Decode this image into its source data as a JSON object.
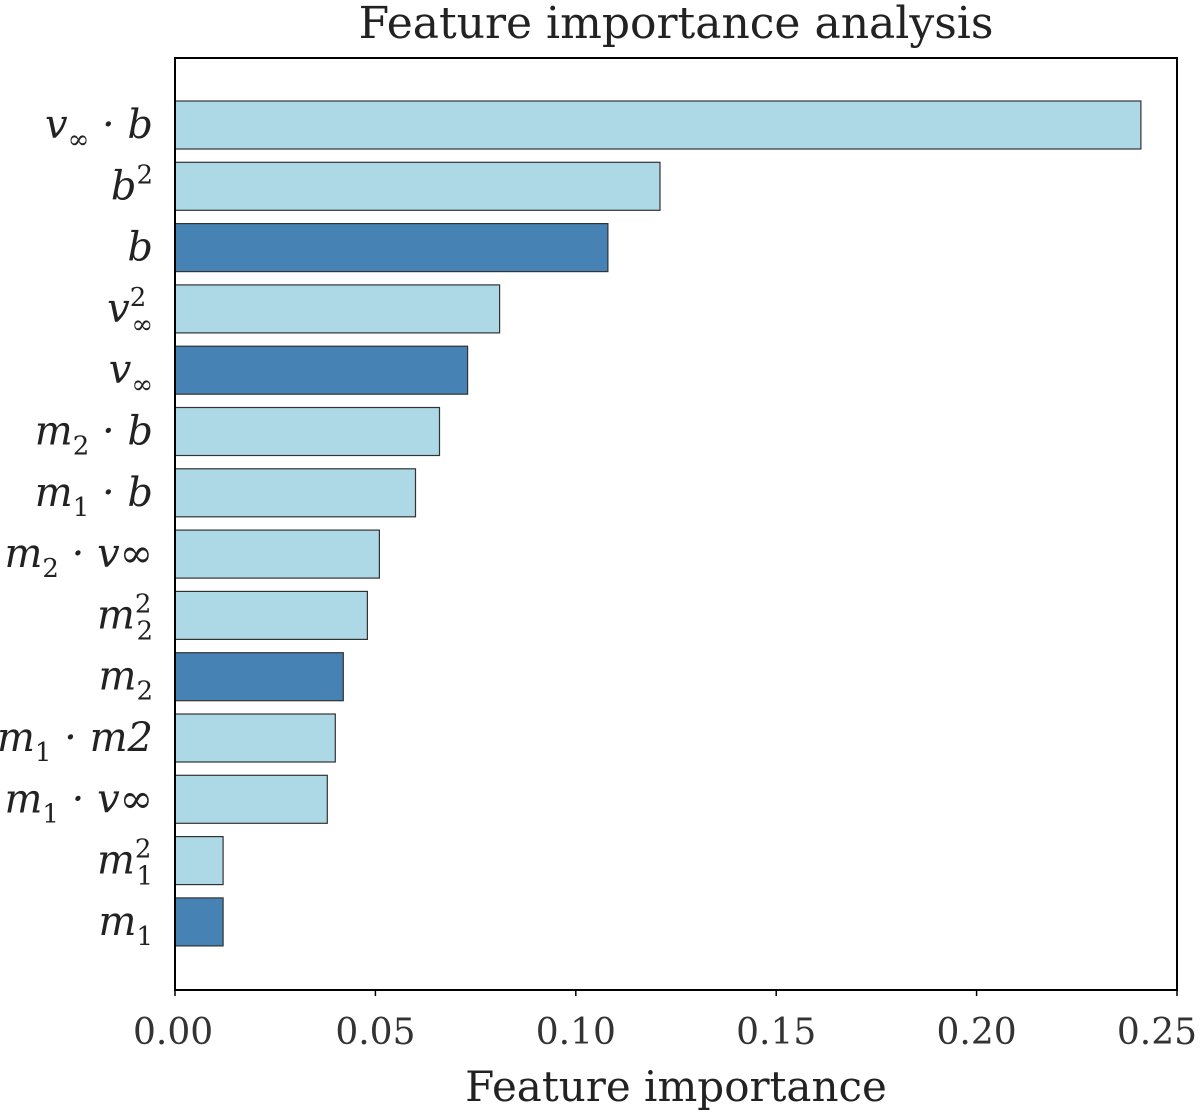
{
  "chart_data": {
    "type": "bar",
    "orientation": "horizontal",
    "title": "Feature importance analysis",
    "xlabel": "Feature importance",
    "ylabel": "",
    "xlim": [
      0.0,
      0.25
    ],
    "xticks": [
      "0.00",
      "0.05",
      "0.10",
      "0.15",
      "0.20",
      "0.25"
    ],
    "grid": false,
    "colors": {
      "primary": "#4682b4",
      "derived": "#add8e6",
      "edge": "#333333"
    },
    "categories": [
      {
        "label_base": "v",
        "label_sub": "∞",
        "label_sup": "",
        "label_tail": " · b",
        "value": 0.241,
        "kind": "derived"
      },
      {
        "label_base": "b",
        "label_sub": "",
        "label_sup": "2",
        "label_tail": "",
        "value": 0.121,
        "kind": "derived"
      },
      {
        "label_base": "b",
        "label_sub": "",
        "label_sup": "",
        "label_tail": "",
        "value": 0.108,
        "kind": "primary"
      },
      {
        "label_base": "v",
        "label_sub": "∞",
        "label_sup": "2",
        "label_tail": "",
        "value": 0.081,
        "kind": "derived"
      },
      {
        "label_base": "v",
        "label_sub": "∞",
        "label_sup": "",
        "label_tail": "",
        "value": 0.073,
        "kind": "primary"
      },
      {
        "label_base": "m",
        "label_sub": "2",
        "label_sup": "",
        "label_tail": " · b",
        "value": 0.066,
        "kind": "derived"
      },
      {
        "label_base": "m",
        "label_sub": "1",
        "label_sup": "",
        "label_tail": " · b",
        "value": 0.06,
        "kind": "derived"
      },
      {
        "label_base": "m",
        "label_sub": "2",
        "label_sup": "",
        "label_tail": " · v∞",
        "value": 0.051,
        "kind": "derived"
      },
      {
        "label_base": "m",
        "label_sub": "2",
        "label_sup": "2",
        "label_tail": "",
        "value": 0.048,
        "kind": "derived"
      },
      {
        "label_base": "m",
        "label_sub": "2",
        "label_sup": "",
        "label_tail": "",
        "value": 0.042,
        "kind": "primary"
      },
      {
        "label_base": "m",
        "label_sub": "1",
        "label_sup": "",
        "label_tail": " · m2",
        "value": 0.04,
        "kind": "derived"
      },
      {
        "label_base": "m",
        "label_sub": "1",
        "label_sup": "",
        "label_tail": " · v∞",
        "value": 0.038,
        "kind": "derived"
      },
      {
        "label_base": "m",
        "label_sub": "1",
        "label_sup": "2",
        "label_tail": "",
        "value": 0.012,
        "kind": "derived"
      },
      {
        "label_base": "m",
        "label_sub": "1",
        "label_sup": "",
        "label_tail": "",
        "value": 0.012,
        "kind": "primary"
      }
    ]
  }
}
